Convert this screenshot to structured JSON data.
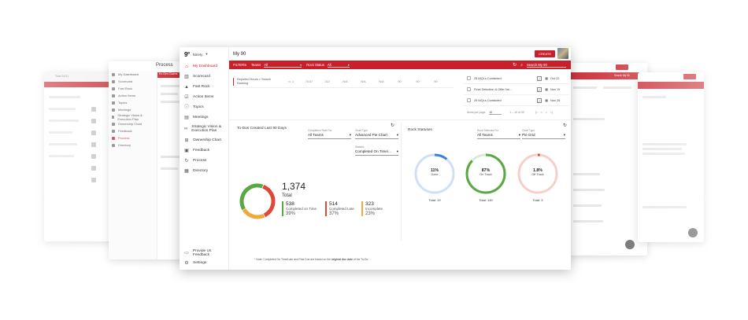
{
  "app": {
    "org_name": "Ninety",
    "page_title": "My 90",
    "create_label": "CREATE"
  },
  "sidebar": {
    "items": [
      {
        "label": "My Dashboard",
        "icon": "home-icon",
        "active": true
      },
      {
        "label": "Scorecard",
        "icon": "chart-icon"
      },
      {
        "label": "Fast Rock",
        "icon": "mountain-icon"
      },
      {
        "label": "Action Items",
        "icon": "checkbox-icon"
      },
      {
        "label": "Topics",
        "icon": "info-icon"
      },
      {
        "label": "Meetings",
        "icon": "chat-icon"
      },
      {
        "label": "Strategic Vision & Execution Plan",
        "icon": "binoculars-icon"
      },
      {
        "label": "Ownership Chart",
        "icon": "org-chart-icon"
      },
      {
        "label": "Feedback",
        "icon": "feedback-icon"
      },
      {
        "label": "Process",
        "icon": "refresh-icon"
      },
      {
        "label": "Directory",
        "icon": "directory-icon"
      }
    ],
    "bottom": [
      {
        "label": "Provide Us Feedback",
        "icon": "comment-icon"
      },
      {
        "label": "Settings",
        "icon": "gear-icon"
      }
    ]
  },
  "filters": {
    "label": "FILTERS",
    "teams_label": "Teams",
    "teams_value": "All",
    "rock_status_label": "Rock Status",
    "rock_status_value": "All",
    "search_placeholder": "Search My 90"
  },
  "measurable_row": {
    "label": "Reported Hours > Search Ranking",
    "cells": [
      ">= 1",
      "70.67",
      "212",
      "N/A",
      "N/A",
      "N/A",
      "90",
      "90",
      "90"
    ]
  },
  "todos": {
    "rows": [
      {
        "title": "25 MQLs Contacted",
        "date": "Oct 22"
      },
      {
        "title": "Final Selection & Offer Ne...",
        "date": "Nov 19"
      },
      {
        "title": "25 MQLs Contacted",
        "date": "Nov 26"
      }
    ],
    "items_per_page_label": "Items per page:",
    "items_per_page_value": "10",
    "range": "1 – 10 of 30"
  },
  "todos_chart": {
    "title": "To-Dos Created Last 90 Days",
    "completion_rate_label": "Completion Rate For",
    "completion_rate_value": "All Teams",
    "chart_type_label": "Chart Type",
    "chart_type_value": "Advanced Pie Chart",
    "statistic_label": "Statistic",
    "statistic_value": "Completed On Time/...",
    "total": "1,374",
    "total_label": "Total",
    "stats": [
      {
        "value": "538",
        "label": "Completed on Time",
        "pct": "39%",
        "color": "#5aa843"
      },
      {
        "value": "514",
        "label": "Completed Late",
        "pct": "37%",
        "color": "#e0463a"
      },
      {
        "value": "323",
        "label": "Incomplete",
        "pct": "23%",
        "color": "#f2a93b"
      }
    ],
    "note_prefix": "* Note: Completed On Time/Late and Past Due are based on the ",
    "note_bold": "original due date",
    "note_suffix": " of the To-Do."
  },
  "rocks_chart": {
    "title": "Rock Statuses",
    "rock_status_for_label": "Rock Statuses For",
    "rock_status_for_value": "All Teams",
    "chart_type_label": "Chart Type",
    "chart_type_value": "Pie Grid",
    "circles": [
      {
        "pct": "11%",
        "label": "Done",
        "total": "Total: 19",
        "fraction": 0.11,
        "color": "#3b82d6",
        "track": "#cfe0f5"
      },
      {
        "pct": "87%",
        "label": "On Track",
        "total": "Total: 149",
        "fraction": 0.87,
        "color": "#5aa843",
        "track": "#d6ecd0"
      },
      {
        "pct": "1.8%",
        "label": "Off Track",
        "total": "Total: 3",
        "fraction": 0.018,
        "color": "#e0463a",
        "track": "#f6cfcb"
      }
    ]
  },
  "chart_data": [
    {
      "type": "pie",
      "title": "To-Dos Created Last 90 Days",
      "categories": [
        "Completed on Time",
        "Completed Late",
        "Incomplete"
      ],
      "values": [
        538,
        514,
        323
      ],
      "percentages": [
        39,
        37,
        23
      ],
      "total": 1374,
      "colors": [
        "#5aa843",
        "#e0463a",
        "#f2a93b"
      ]
    },
    {
      "type": "pie",
      "title": "Rock Statuses",
      "categories": [
        "Done",
        "On Track",
        "Off Track"
      ],
      "percentages": [
        11,
        87,
        1.8
      ],
      "totals": [
        19,
        149,
        3
      ]
    }
  ],
  "ghost_panels": {
    "process_title": "Process",
    "process_tabs": "Ex Gen   Claims",
    "process_side": [
      "My Dashboard",
      "Scorecard",
      "Fast Rock",
      "Action Items",
      "Topics",
      "Meetings",
      "Strategic Vision & Execution Plan",
      "Ownership Chart",
      "Feedback",
      "Process",
      "Directory"
    ],
    "far_left_title": "Total   24/31",
    "right_search": "Search My 90"
  }
}
